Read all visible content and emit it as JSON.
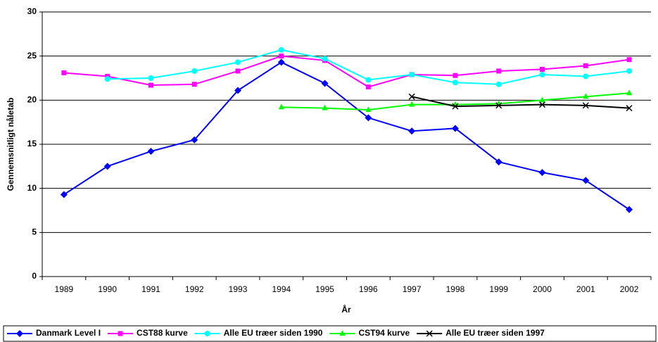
{
  "chart_data": {
    "type": "line",
    "x_label": "År",
    "y_label": "Gennemsnitligt nåletab",
    "categories": [
      "1989",
      "1990",
      "1991",
      "1992",
      "1993",
      "1994",
      "1995",
      "1996",
      "1997",
      "1998",
      "1999",
      "2000",
      "2001",
      "2002"
    ],
    "ylim": [
      0,
      30
    ],
    "yticks": [
      0,
      5,
      10,
      15,
      20,
      25,
      30
    ],
    "grid": true,
    "legend": "bottom",
    "series": [
      {
        "name": "Danmark Level I",
        "color": "#0000ff",
        "marker": "diamond",
        "values": [
          9.3,
          12.5,
          14.2,
          15.5,
          21.1,
          24.3,
          21.9,
          18.0,
          16.5,
          16.8,
          13.0,
          11.8,
          10.9,
          7.6
        ]
      },
      {
        "name": "CST88 kurve",
        "color": "#ff00ff",
        "marker": "square",
        "values": [
          23.1,
          22.7,
          21.7,
          21.8,
          23.3,
          25.0,
          24.5,
          21.5,
          22.9,
          22.8,
          23.3,
          23.5,
          23.9,
          24.6
        ]
      },
      {
        "name": "Alle EU træer siden 1990",
        "color": "#00ffff",
        "marker": "circle",
        "values": [
          null,
          22.4,
          22.5,
          23.3,
          24.3,
          25.7,
          24.7,
          22.3,
          22.9,
          22.0,
          21.8,
          22.9,
          22.7,
          23.3
        ]
      },
      {
        "name": "CST94 kurve",
        "color": "#00ff00",
        "marker": "triangle",
        "values": [
          null,
          null,
          null,
          null,
          null,
          19.2,
          19.1,
          18.9,
          19.5,
          19.5,
          19.6,
          20.0,
          20.4,
          20.8
        ]
      },
      {
        "name": "Alle EU træer siden 1997",
        "color": "#000000",
        "marker": "x",
        "values": [
          null,
          null,
          null,
          null,
          null,
          null,
          null,
          null,
          20.4,
          19.3,
          19.4,
          19.5,
          19.4,
          19.1
        ]
      }
    ]
  }
}
